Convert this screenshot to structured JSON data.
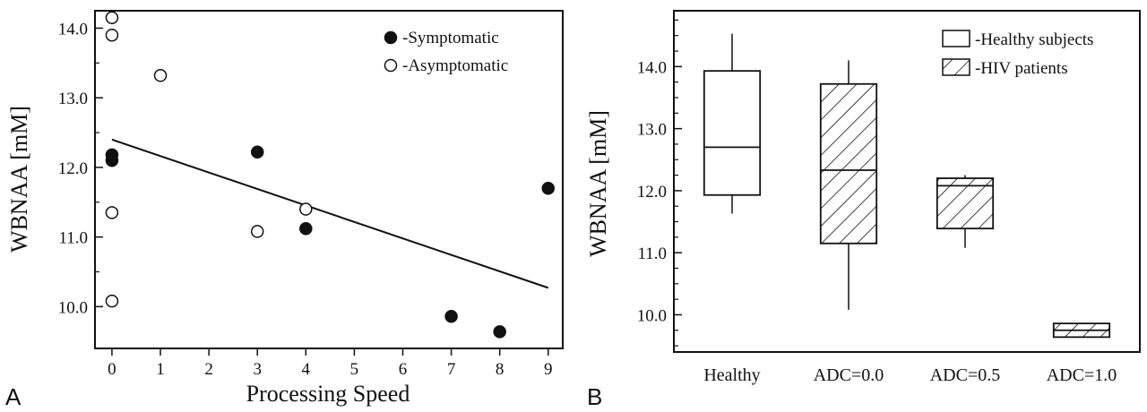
{
  "panels": [
    {
      "letter": "A",
      "xlabel": "Processing Speed",
      "ylabel": "WBNAA [mM]",
      "legend": [
        {
          "marker": "filled",
          "label": "-Symptomatic"
        },
        {
          "marker": "open",
          "label": "-Asymptomatic"
        }
      ]
    },
    {
      "letter": "B",
      "ylabel": "WBNAA [mM]",
      "legend": [
        {
          "fill": "plain",
          "label": "-Healthy subjects"
        },
        {
          "fill": "hatch",
          "label": "-HIV patients"
        }
      ]
    }
  ],
  "chart_data": [
    {
      "type": "scatter",
      "xlabel": "Processing Speed",
      "ylabel": "WBNAA [mM]",
      "xlim": [
        -0.35,
        9.3
      ],
      "ylim": [
        9.4,
        14.25
      ],
      "xticks": [
        0,
        1,
        2,
        3,
        4,
        5,
        6,
        7,
        8,
        9
      ],
      "yticks": [
        10.0,
        11.0,
        12.0,
        13.0,
        14.0
      ],
      "series": [
        {
          "name": "Symptomatic",
          "marker": "filled",
          "points": [
            [
              0,
              12.18
            ],
            [
              0,
              12.1
            ],
            [
              3,
              12.22
            ],
            [
              4,
              11.12
            ],
            [
              7,
              9.86
            ],
            [
              8,
              9.64
            ],
            [
              9,
              11.7
            ]
          ]
        },
        {
          "name": "Asymptomatic",
          "marker": "open",
          "points": [
            [
              0,
              14.15
            ],
            [
              0,
              13.9
            ],
            [
              1,
              13.32
            ],
            [
              0,
              11.35
            ],
            [
              0,
              10.08
            ],
            [
              3,
              11.08
            ],
            [
              4,
              11.4
            ]
          ]
        }
      ],
      "fit_line": [
        [
          0,
          12.4
        ],
        [
          9,
          10.27
        ]
      ],
      "legend_position": "top-right",
      "grid": false
    },
    {
      "type": "box",
      "ylabel": "WBNAA [mM]",
      "categories": [
        "Healthy",
        "ADC=0.0",
        "ADC=0.5",
        "ADC=1.0"
      ],
      "ylim": [
        9.4,
        14.9
      ],
      "yticks": [
        10.0,
        11.0,
        12.0,
        13.0,
        14.0
      ],
      "boxes": [
        {
          "category": "Healthy",
          "group": "Healthy subjects",
          "fill": "plain",
          "whisker_low": 11.63,
          "q1": 11.93,
          "median": 12.7,
          "q3": 13.93,
          "whisker_high": 14.53
        },
        {
          "category": "ADC=0.0",
          "group": "HIV patients",
          "fill": "hatch",
          "whisker_low": 10.08,
          "q1": 11.15,
          "median": 12.33,
          "q3": 13.72,
          "whisker_high": 14.1
        },
        {
          "category": "ADC=0.5",
          "group": "HIV patients",
          "fill": "hatch",
          "whisker_low": 11.08,
          "q1": 11.39,
          "median": 12.08,
          "q3": 12.2,
          "whisker_high": 12.25
        },
        {
          "category": "ADC=1.0",
          "group": "HIV patients",
          "fill": "hatch",
          "whisker_low": 9.64,
          "q1": 9.64,
          "median": 9.75,
          "q3": 9.86,
          "whisker_high": 9.86
        }
      ],
      "legend_position": "top-right",
      "grid": false
    }
  ]
}
